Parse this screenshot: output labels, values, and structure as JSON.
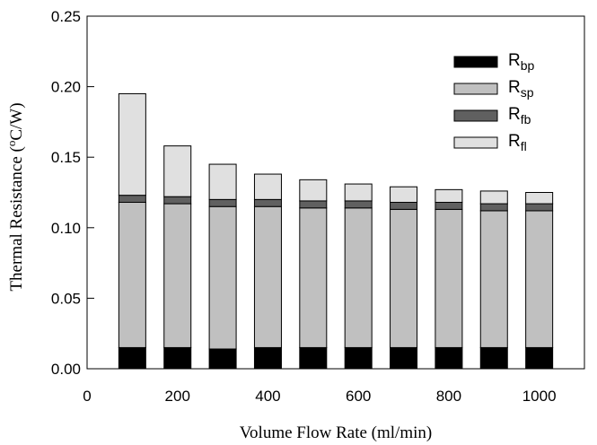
{
  "chart_data": {
    "type": "bar",
    "stacked": true,
    "title": "",
    "xlabel": "Volume Flow Rate (ml/min)",
    "ylabel": "Thermal Resistance (°C/W)",
    "ylabel_parts": {
      "pre": "Thermal Resistance (",
      "sup": "o",
      "post": "C/W)"
    },
    "xlim": [
      0,
      1100
    ],
    "ylim": [
      0,
      0.25
    ],
    "xticks": [
      0,
      200,
      400,
      600,
      800,
      1000
    ],
    "xtick_labels": [
      "0",
      "200",
      "400",
      "600",
      "800",
      "1000"
    ],
    "yticks": [
      0,
      0.05,
      0.1,
      0.15,
      0.2,
      0.25
    ],
    "ytick_labels": [
      "0.00",
      "0.05",
      "0.10",
      "0.15",
      "0.20",
      "0.25"
    ],
    "x": [
      100,
      200,
      300,
      400,
      500,
      600,
      700,
      800,
      900,
      1000
    ],
    "series": [
      {
        "name": "Rbp",
        "label_main": "R",
        "label_sub": "bp",
        "color": "#000000",
        "values": [
          0.015,
          0.015,
          0.014,
          0.015,
          0.015,
          0.015,
          0.015,
          0.015,
          0.015,
          0.015
        ]
      },
      {
        "name": "Rsp",
        "label_main": "R",
        "label_sub": "sp",
        "color": "#c0c0c0",
        "values": [
          0.103,
          0.102,
          0.101,
          0.1,
          0.099,
          0.099,
          0.098,
          0.098,
          0.097,
          0.097
        ]
      },
      {
        "name": "Rfb",
        "label_main": "R",
        "label_sub": "fb",
        "color": "#606060",
        "values": [
          0.005,
          0.005,
          0.005,
          0.005,
          0.005,
          0.005,
          0.005,
          0.005,
          0.005,
          0.005
        ]
      },
      {
        "name": "Rfl",
        "label_main": "R",
        "label_sub": "fl",
        "color": "#e0e0e0",
        "values": [
          0.072,
          0.036,
          0.025,
          0.018,
          0.015,
          0.012,
          0.011,
          0.009,
          0.009,
          0.008
        ]
      }
    ],
    "legend_position": "top-right",
    "grid": false
  }
}
